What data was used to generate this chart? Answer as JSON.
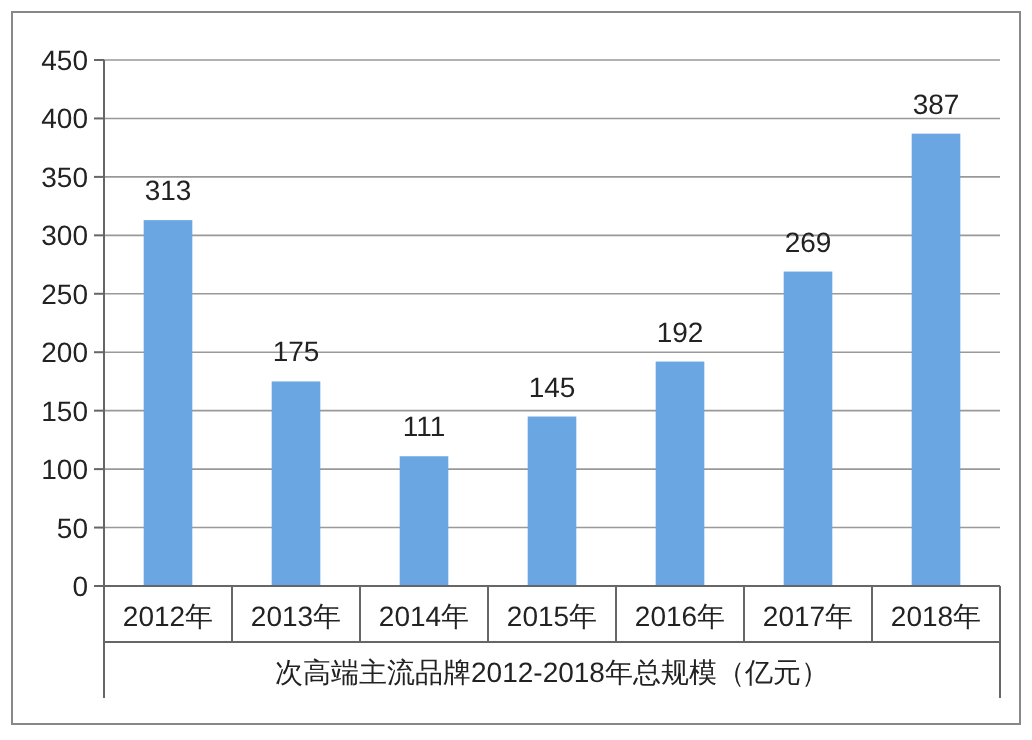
{
  "chart_data": {
    "type": "bar",
    "title": "次高端主流品牌2012-2018年总规模（亿元）",
    "categories": [
      "2012年",
      "2013年",
      "2014年",
      "2015年",
      "2016年",
      "2017年",
      "2018年"
    ],
    "values": [
      313,
      175,
      111,
      145,
      192,
      269,
      387
    ],
    "color": "#6aa6e2",
    "ylim": [
      0,
      450
    ],
    "yticks": [
      0,
      50,
      100,
      150,
      200,
      250,
      300,
      350,
      400,
      450
    ],
    "grid": "y",
    "data_labels": true
  }
}
